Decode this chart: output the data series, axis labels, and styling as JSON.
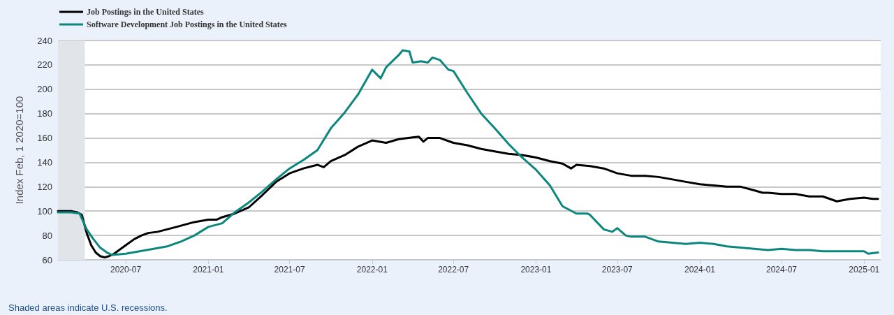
{
  "chart_data": {
    "type": "line",
    "ylabel": "Index Feb, 1 2020=100",
    "legend": "top left",
    "grid": "y",
    "line_style": "solid",
    "marker": "none",
    "xlim": [
      "2020-02-01",
      "2025-02-07"
    ],
    "ylim": [
      60,
      240
    ],
    "xticks": [
      "2020-07",
      "2021-01",
      "2021-07",
      "2022-01",
      "2022-07",
      "2023-01",
      "2023-07",
      "2024-01",
      "2024-07",
      "2025-01"
    ],
    "yticks": [
      60,
      80,
      100,
      120,
      140,
      160,
      180,
      200,
      220,
      240
    ],
    "bands": [
      {
        "axis": "x",
        "from": "2020-02-01",
        "to": "2020-04-01",
        "color": "#e1e5ea"
      }
    ],
    "annotations": [
      "Shaded areas indicate U.S. recessions."
    ],
    "series": [
      {
        "name": "Job Postings in the United States",
        "color": "#000000",
        "x": [
          "2020-02-01",
          "2020-03-01",
          "2020-03-15",
          "2020-03-25",
          "2020-04-05",
          "2020-04-15",
          "2020-04-25",
          "2020-05-05",
          "2020-05-15",
          "2020-05-25",
          "2020-06-05",
          "2020-06-20",
          "2020-07-05",
          "2020-07-20",
          "2020-08-05",
          "2020-08-20",
          "2020-09-10",
          "2020-10-01",
          "2020-11-01",
          "2020-12-01",
          "2021-01-01",
          "2021-01-20",
          "2021-02-01",
          "2021-03-01",
          "2021-04-01",
          "2021-05-01",
          "2021-06-01",
          "2021-07-01",
          "2021-08-01",
          "2021-09-01",
          "2021-09-15",
          "2021-10-01",
          "2021-11-01",
          "2021-12-01",
          "2022-01-01",
          "2022-02-01",
          "2022-03-01",
          "2022-04-01",
          "2022-04-15",
          "2022-04-25",
          "2022-05-05",
          "2022-06-01",
          "2022-07-01",
          "2022-08-01",
          "2022-09-01",
          "2022-10-01",
          "2022-11-01",
          "2022-12-01",
          "2023-01-01",
          "2023-02-01",
          "2023-03-01",
          "2023-03-20",
          "2023-04-01",
          "2023-05-01",
          "2023-06-01",
          "2023-07-01",
          "2023-08-01",
          "2023-09-01",
          "2023-10-01",
          "2023-11-01",
          "2023-12-01",
          "2024-01-01",
          "2024-02-01",
          "2024-03-01",
          "2024-04-01",
          "2024-05-01",
          "2024-05-20",
          "2024-06-01",
          "2024-07-01",
          "2024-08-01",
          "2024-09-01",
          "2024-10-01",
          "2024-11-01",
          "2024-12-01",
          "2025-01-01",
          "2025-01-20",
          "2025-02-01"
        ],
        "values": [
          100,
          100,
          99,
          97,
          82,
          72,
          66,
          63,
          62,
          63,
          65,
          69,
          73,
          77,
          80,
          82,
          83,
          85,
          88,
          91,
          93,
          93,
          95,
          98,
          103,
          113,
          124,
          131,
          135,
          138,
          136,
          141,
          146,
          153,
          158,
          156,
          159,
          160.5,
          161,
          157,
          160,
          160,
          156,
          154,
          151,
          149,
          147,
          146,
          144,
          141,
          139,
          135,
          138,
          137,
          135,
          131,
          129,
          129,
          128,
          126,
          124,
          122,
          121,
          120,
          120,
          117,
          115,
          115,
          114,
          114,
          112,
          112,
          108,
          110,
          111,
          110,
          110
        ]
      },
      {
        "name": "Software Development Job Postings in the United States",
        "color": "#0b877d",
        "x": [
          "2020-02-01",
          "2020-03-01",
          "2020-03-20",
          "2020-04-05",
          "2020-04-20",
          "2020-05-05",
          "2020-05-20",
          "2020-06-01",
          "2020-07-01",
          "2020-08-01",
          "2020-09-01",
          "2020-10-01",
          "2020-11-01",
          "2020-12-01",
          "2021-01-01",
          "2021-02-01",
          "2021-03-01",
          "2021-04-01",
          "2021-05-01",
          "2021-06-01",
          "2021-07-01",
          "2021-08-01",
          "2021-09-01",
          "2021-10-01",
          "2021-11-01",
          "2021-12-01",
          "2022-01-01",
          "2022-01-20",
          "2022-02-01",
          "2022-03-01",
          "2022-03-10",
          "2022-03-25",
          "2022-04-01",
          "2022-04-20",
          "2022-05-05",
          "2022-05-15",
          "2022-06-01",
          "2022-06-20",
          "2022-07-01",
          "2022-08-01",
          "2022-09-01",
          "2022-10-01",
          "2022-11-01",
          "2022-12-01",
          "2023-01-01",
          "2023-02-01",
          "2023-03-01",
          "2023-04-01",
          "2023-04-25",
          "2023-05-01",
          "2023-06-01",
          "2023-06-20",
          "2023-07-01",
          "2023-07-20",
          "2023-08-01",
          "2023-09-01",
          "2023-10-01",
          "2023-11-01",
          "2023-12-01",
          "2024-01-01",
          "2024-02-01",
          "2024-03-01",
          "2024-04-01",
          "2024-05-01",
          "2024-06-01",
          "2024-07-01",
          "2024-08-01",
          "2024-09-01",
          "2024-10-01",
          "2024-11-01",
          "2024-12-01",
          "2025-01-01",
          "2025-01-10",
          "2025-02-01"
        ],
        "values": [
          99,
          99,
          98,
          85,
          77,
          70,
          66,
          64,
          65,
          67,
          69,
          71,
          75,
          80,
          87,
          90,
          99,
          107,
          116,
          126,
          135,
          142,
          150,
          168,
          181,
          196,
          216,
          209,
          218,
          228,
          232,
          231,
          222,
          223,
          222,
          226,
          224,
          216,
          215,
          197,
          180,
          168,
          155,
          144,
          134,
          121,
          104,
          98,
          98,
          97,
          85,
          83,
          86,
          80,
          79,
          79,
          75,
          74,
          73,
          74,
          73,
          71,
          70,
          69,
          68,
          69,
          68,
          68,
          67,
          67,
          67,
          67,
          65,
          66
        ]
      }
    ]
  }
}
